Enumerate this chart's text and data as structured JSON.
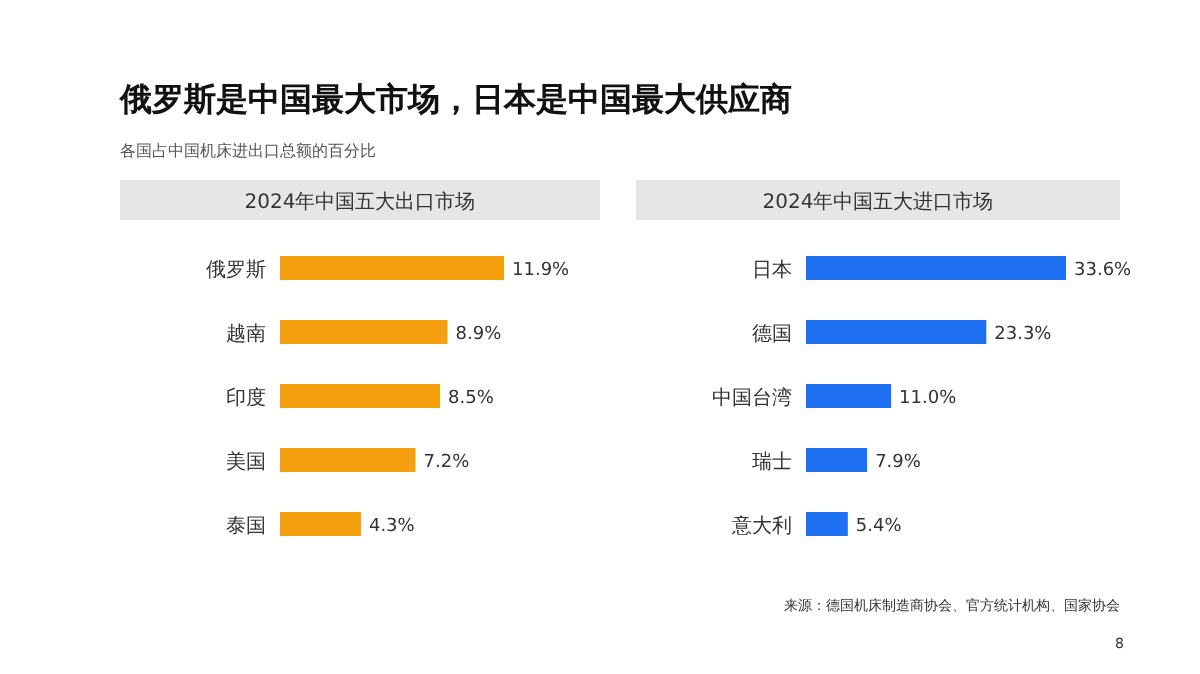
{
  "chart_data": [
    {
      "type": "bar",
      "orientation": "horizontal",
      "title": "2024年中国五大出口市场",
      "categories": [
        "俄罗斯",
        "越南",
        "印度",
        "美国",
        "泰国"
      ],
      "values": [
        11.9,
        8.9,
        8.5,
        7.2,
        4.3
      ],
      "value_labels": [
        "11.9%",
        "8.9%",
        "8.5%",
        "7.2%",
        "4.3%"
      ],
      "color": "#f5a00f",
      "annotations": [
        "俄罗斯是中国最大市场，日本是中国最大供应商",
        "各国占中国机床进出口总额的百分比"
      ]
    },
    {
      "type": "bar",
      "orientation": "horizontal",
      "title": "2024年中国五大进口市场",
      "categories": [
        "日本",
        "德国",
        "中国台湾",
        "瑞士",
        "意大利"
      ],
      "values": [
        33.6,
        23.3,
        11.0,
        7.9,
        5.4
      ],
      "value_labels": [
        "33.6%",
        "23.3%",
        "11.0%",
        "7.9%",
        "5.4%"
      ],
      "color": "#1f6ff2",
      "annotations": [
        "来源：德国机床制造商协会、官方统计机构、国家协会",
        "8"
      ]
    }
  ]
}
